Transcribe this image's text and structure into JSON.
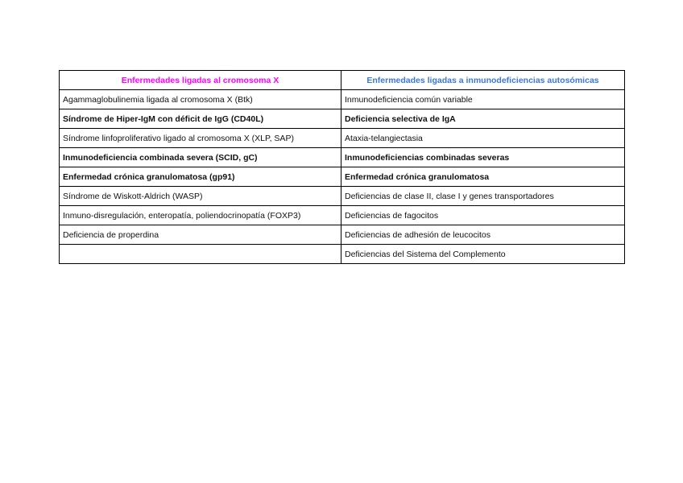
{
  "colors": {
    "left_header": "#ff00ff",
    "right_header": "#3a78d6"
  },
  "table": {
    "headers": [
      "Enfermedades ligadas al cromosoma X",
      "Enfermedades ligadas a inmunodeficiencias autosómicas"
    ],
    "rows": [
      {
        "bold": false,
        "cells": [
          "Agammaglobulinemia ligada al cromosoma X (Btk)",
          "Inmunodeficiencia común variable"
        ]
      },
      {
        "bold": true,
        "cells": [
          "Síndrome de Hiper-IgM con déficit de IgG (CD40L)",
          "Deficiencia selectiva de IgA"
        ]
      },
      {
        "bold": false,
        "cells": [
          "Síndrome linfoproliferativo ligado al cromosoma X (XLP, SAP)",
          "Ataxia-telangiectasia"
        ]
      },
      {
        "bold": true,
        "cells": [
          "Inmunodeficiencia combinada severa (SCID, gC)",
          "Inmunodeficiencias combinadas severas"
        ]
      },
      {
        "bold": true,
        "cells": [
          "Enfermedad crónica granulomatosa (gp91)",
          "Enfermedad crónica granulomatosa"
        ]
      },
      {
        "bold": false,
        "cells": [
          "Síndrome de Wiskott-Aldrich (WASP)",
          "Deficiencias de clase II, clase I y genes transportadores"
        ]
      },
      {
        "bold": false,
        "cells": [
          "Inmuno-disregulación, enteropatía, poliendocrinopatía (FOXP3)",
          "Deficiencias de fagocitos"
        ]
      },
      {
        "bold": false,
        "cells": [
          "Deficiencia de properdina",
          "Deficiencias de adhesión de leucocitos"
        ]
      },
      {
        "bold": false,
        "cells": [
          "",
          "Deficiencias del Sistema del Complemento"
        ]
      }
    ]
  }
}
